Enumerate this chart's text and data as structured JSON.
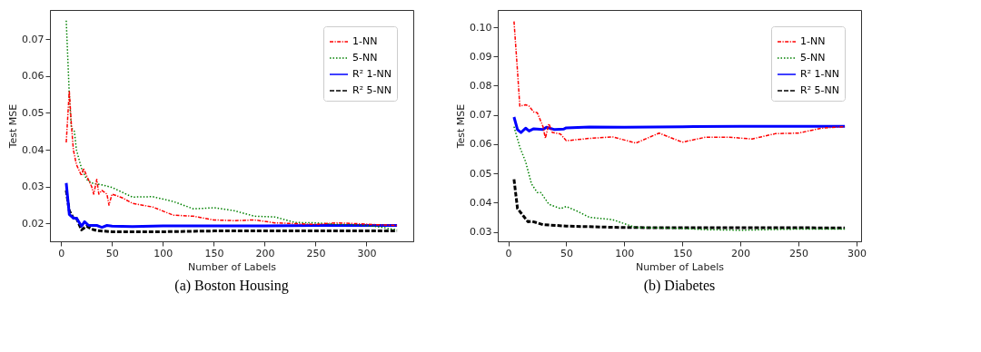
{
  "chart_data": [
    {
      "type": "line",
      "title": "(a)  Boston Housing",
      "xlabel": "Number of Labels",
      "ylabel": "Test MSE",
      "xlim": [
        -11,
        346
      ],
      "ylim": [
        0.0152,
        0.0779
      ],
      "xticks": [
        0,
        50,
        100,
        150,
        200,
        250,
        300
      ],
      "yticks": [
        0.02,
        0.03,
        0.04,
        0.05,
        0.06,
        0.07
      ],
      "grid": false,
      "legend": "top right",
      "series": [
        {
          "name": "1-NN",
          "color": "#ff0000",
          "line_style": "dashdot",
          "x": [
            5,
            8,
            10,
            12,
            15,
            20,
            22,
            25,
            30,
            32,
            35,
            37,
            40,
            45,
            47,
            50,
            60,
            70,
            90,
            110,
            130,
            150,
            170,
            190,
            210,
            230,
            250,
            270,
            290,
            310,
            330
          ],
          "values": [
            0.042,
            0.056,
            0.047,
            0.04,
            0.036,
            0.033,
            0.035,
            0.033,
            0.03,
            0.028,
            0.032,
            0.028,
            0.029,
            0.028,
            0.025,
            0.028,
            0.027,
            0.0255,
            0.0245,
            0.0223,
            0.022,
            0.021,
            0.0208,
            0.021,
            0.0202,
            0.02,
            0.0198,
            0.0202,
            0.02,
            0.0197,
            0.0195
          ]
        },
        {
          "name": "5-NN",
          "color": "#008000",
          "line_style": "dotted",
          "x": [
            5,
            8,
            10,
            13,
            15,
            20,
            25,
            30,
            40,
            50,
            60,
            70,
            90,
            110,
            130,
            150,
            170,
            190,
            210,
            230,
            250,
            270,
            290,
            310,
            330
          ],
          "values": [
            0.075,
            0.055,
            0.046,
            0.045,
            0.04,
            0.035,
            0.032,
            0.031,
            0.0305,
            0.0298,
            0.0285,
            0.0272,
            0.0273,
            0.026,
            0.024,
            0.0243,
            0.0235,
            0.022,
            0.0218,
            0.0203,
            0.0202,
            0.0198,
            0.0197,
            0.0192,
            0.0183
          ]
        },
        {
          "name": "R² 1-NN",
          "color": "#0000ff",
          "line_style": "solid",
          "x": [
            5,
            8,
            12,
            15,
            20,
            23,
            27,
            35,
            40,
            45,
            50,
            70,
            100,
            150,
            200,
            250,
            330
          ],
          "values": [
            0.031,
            0.0225,
            0.0215,
            0.0215,
            0.0193,
            0.0205,
            0.0195,
            0.0195,
            0.019,
            0.0195,
            0.0193,
            0.0192,
            0.0194,
            0.0194,
            0.0194,
            0.0195,
            0.0195
          ]
        },
        {
          "name": "R² 5-NN",
          "color": "#000000",
          "line_style": "dashed",
          "x": [
            5,
            8,
            12,
            15,
            20,
            25,
            30,
            35,
            50,
            100,
            150,
            250,
            330
          ],
          "values": [
            0.029,
            0.0235,
            0.0215,
            0.0215,
            0.0183,
            0.0193,
            0.0185,
            0.0181,
            0.0178,
            0.0178,
            0.018,
            0.018,
            0.018
          ]
        }
      ]
    },
    {
      "type": "line",
      "title": "(b)  Diabetes",
      "xlabel": "Number of Labels",
      "ylabel": "Test MSE",
      "xlim": [
        -9,
        304
      ],
      "ylim": [
        0.0268,
        0.1059
      ],
      "xticks": [
        0,
        50,
        100,
        150,
        200,
        250,
        300
      ],
      "yticks": [
        0.03,
        0.04,
        0.05,
        0.06,
        0.07,
        0.08,
        0.09,
        {
          "value": 0.1,
          "label": "0.10"
        }
      ],
      "grid": false,
      "legend": "top right",
      "series": [
        {
          "name": "1-NN",
          "color": "#ff0000",
          "line_style": "dashdot",
          "x": [
            5,
            8,
            10,
            15,
            18,
            22,
            25,
            30,
            32,
            35,
            38,
            45,
            50,
            70,
            90,
            110,
            130,
            150,
            170,
            190,
            210,
            230,
            250,
            270,
            290
          ],
          "values": [
            0.102,
            0.085,
            0.073,
            0.0735,
            0.073,
            0.071,
            0.0708,
            0.066,
            0.062,
            0.067,
            0.064,
            0.0635,
            0.0612,
            0.062,
            0.0625,
            0.0604,
            0.0638,
            0.0607,
            0.0624,
            0.0624,
            0.0618,
            0.0636,
            0.0638,
            0.0655,
            0.066
          ]
        },
        {
          "name": "5-NN",
          "color": "#008000",
          "line_style": "dotted",
          "x": [
            5,
            10,
            15,
            20,
            25,
            28,
            35,
            45,
            50,
            60,
            70,
            90,
            110,
            150,
            170,
            200,
            250,
            290
          ],
          "values": [
            0.066,
            0.059,
            0.054,
            0.0465,
            0.0435,
            0.0435,
            0.0395,
            0.038,
            0.0387,
            0.037,
            0.035,
            0.0342,
            0.0315,
            0.0312,
            0.0308,
            0.0306,
            0.031,
            0.031
          ]
        },
        {
          "name": "R² 1-NN",
          "color": "#0000ff",
          "line_style": "solid",
          "x": [
            5,
            8,
            11,
            15,
            18,
            22,
            30,
            33,
            40,
            48,
            50,
            70,
            100,
            150,
            200,
            290
          ],
          "values": [
            0.0693,
            0.065,
            0.064,
            0.0655,
            0.0645,
            0.0653,
            0.065,
            0.0658,
            0.065,
            0.0652,
            0.0656,
            0.0659,
            0.0658,
            0.066,
            0.0661,
            0.0661
          ]
        },
        {
          "name": "R² 5-NN",
          "color": "#000000",
          "line_style": "dashed",
          "x": [
            5,
            8,
            12,
            17,
            20,
            30,
            50,
            100,
            290
          ],
          "values": [
            0.048,
            0.038,
            0.036,
            0.0335,
            0.0337,
            0.0325,
            0.032,
            0.0315,
            0.0314
          ]
        }
      ]
    }
  ]
}
